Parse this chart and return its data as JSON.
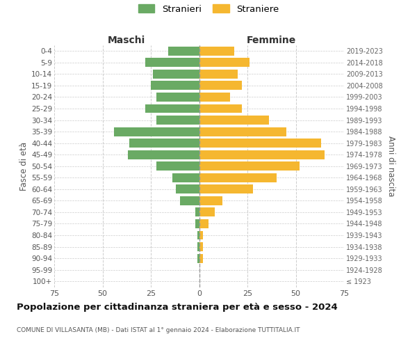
{
  "age_groups": [
    "0-4",
    "5-9",
    "10-14",
    "15-19",
    "20-24",
    "25-29",
    "30-34",
    "35-39",
    "40-44",
    "45-49",
    "50-54",
    "55-59",
    "60-64",
    "65-69",
    "70-74",
    "75-79",
    "80-84",
    "85-89",
    "90-94",
    "95-99",
    "100+"
  ],
  "birth_years": [
    "2019-2023",
    "2014-2018",
    "2009-2013",
    "2004-2008",
    "1999-2003",
    "1994-1998",
    "1989-1993",
    "1984-1988",
    "1979-1983",
    "1974-1978",
    "1969-1973",
    "1964-1968",
    "1959-1963",
    "1954-1958",
    "1949-1953",
    "1944-1948",
    "1939-1943",
    "1934-1938",
    "1929-1933",
    "1924-1928",
    "≤ 1923"
  ],
  "maschi": [
    16,
    28,
    24,
    25,
    22,
    28,
    22,
    44,
    36,
    37,
    22,
    14,
    12,
    10,
    2,
    2,
    1,
    1,
    1,
    0,
    0
  ],
  "femmine": [
    18,
    26,
    20,
    22,
    16,
    22,
    36,
    45,
    63,
    65,
    52,
    40,
    28,
    12,
    8,
    5,
    2,
    2,
    2,
    0,
    0
  ],
  "male_color": "#6aaa64",
  "female_color": "#f5b730",
  "title": "Popolazione per cittadinanza straniera per età e sesso - 2024",
  "subtitle": "COMUNE DI VILLASANTA (MB) - Dati ISTAT al 1° gennaio 2024 - Elaborazione TUTTITALIA.IT",
  "xlabel_left": "Maschi",
  "xlabel_right": "Femmine",
  "ylabel_left": "Fasce di età",
  "ylabel_right": "Anni di nascita",
  "legend_male": "Stranieri",
  "legend_female": "Straniere",
  "xlim": 75,
  "background_color": "#ffffff",
  "grid_color": "#cccccc"
}
